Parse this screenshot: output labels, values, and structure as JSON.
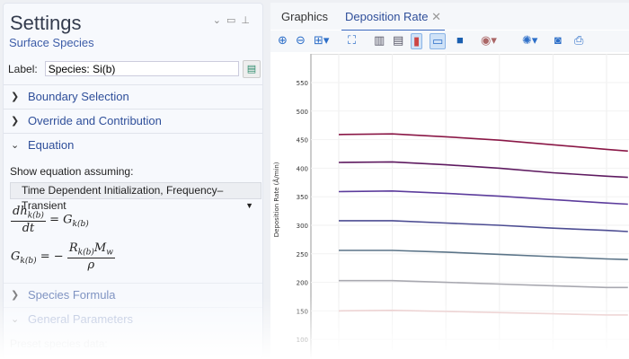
{
  "settings": {
    "title": "Settings",
    "subtitle": "Surface Species",
    "label_caption": "Label:",
    "label_value": "Species: Si(b)",
    "sections": [
      {
        "label": "Boundary Selection",
        "expanded": false
      },
      {
        "label": "Override and Contribution",
        "expanded": false
      },
      {
        "label": "Equation",
        "expanded": true
      },
      {
        "label": "Species Formula",
        "expanded": false
      },
      {
        "label": "General Parameters",
        "expanded": true
      }
    ],
    "show_equation_label": "Show equation assuming:",
    "equation_mode": "Time Dependent Initialization, Frequency–Transient",
    "preset_label": "Preset species data:"
  },
  "graphics": {
    "tabs": [
      {
        "label": "Graphics"
      },
      {
        "label": "Deposition Rate",
        "active": true
      }
    ],
    "toolbar": [
      "zoom-in-icon",
      "zoom-out-icon",
      "zoom-box-icon",
      "zoom-extents-icon",
      "x-grid-icon",
      "y-grid-icon",
      "legend-icon",
      "annotation-icon",
      "lock-icon",
      "color-palette-icon",
      "scene-light-icon",
      "camera-icon",
      "print-icon"
    ]
  },
  "chart_data": {
    "type": "line",
    "ylabel": "Deposition Rate (Å/min)",
    "ylim": [
      100,
      590
    ],
    "yticks": [
      100,
      150,
      200,
      250,
      300,
      350,
      400,
      450,
      500,
      550
    ],
    "grid": true,
    "x": [
      0,
      1,
      2,
      3,
      4,
      5,
      5.4
    ],
    "series": [
      {
        "color": "#8a1746",
        "values": [
          459,
          460,
          455,
          449,
          441,
          433,
          430
        ]
      },
      {
        "color": "#5e1a60",
        "values": [
          410,
          411,
          406,
          400,
          392,
          386,
          384
        ]
      },
      {
        "color": "#5c3c9c",
        "values": [
          359,
          360,
          356,
          351,
          345,
          339,
          337
        ]
      },
      {
        "color": "#4c4c92",
        "values": [
          308,
          308,
          304,
          300,
          295,
          291,
          289
        ]
      },
      {
        "color": "#5b7488",
        "values": [
          256,
          256,
          253,
          249,
          245,
          241,
          240
        ]
      },
      {
        "color": "#a8a8b0",
        "values": [
          203,
          203,
          200,
          197,
          194,
          191,
          191
        ]
      },
      {
        "color": "#e8c6c6",
        "values": [
          150,
          151,
          149,
          147,
          145,
          143,
          143
        ]
      }
    ]
  }
}
